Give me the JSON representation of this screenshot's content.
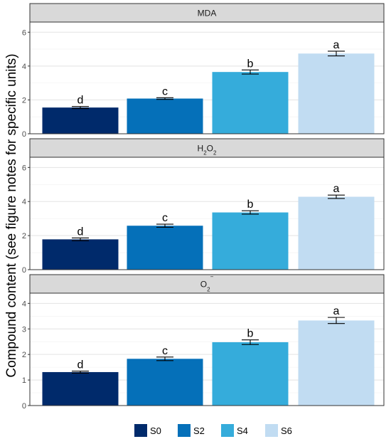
{
  "chart_data": {
    "type": "bar",
    "ylabel": "Compound content (see figure notes for specific units)",
    "categories": [
      "S0",
      "S2",
      "S4",
      "S6"
    ],
    "colors": [
      "#002a6b",
      "#0570b9",
      "#35acdb",
      "#c1dcf2"
    ],
    "legend": {
      "position": "bottom",
      "entries": [
        "S0",
        "S2",
        "S4",
        "S6"
      ]
    },
    "grid": true,
    "panels": [
      {
        "title_html": "MDA",
        "ylim": [
          0,
          6.6
        ],
        "yticks": [
          0,
          2,
          4,
          6
        ],
        "values": [
          1.55,
          2.08,
          3.65,
          4.74
        ],
        "errors": [
          0.06,
          0.05,
          0.12,
          0.14
        ],
        "letters": [
          "d",
          "c",
          "b",
          "a"
        ]
      },
      {
        "title_html": "H<tspan baseline-shift=\"sub\" font-size=\"8\">2</tspan>O<tspan baseline-shift=\"sub\" font-size=\"8\">2</tspan>",
        "ylim": [
          0,
          6.6
        ],
        "yticks": [
          0,
          2,
          4,
          6
        ],
        "values": [
          1.78,
          2.58,
          3.36,
          4.28
        ],
        "errors": [
          0.08,
          0.09,
          0.1,
          0.1
        ],
        "letters": [
          "d",
          "c",
          "b",
          "a"
        ]
      },
      {
        "title_html": "O<tspan baseline-shift=\"-6\" font-size=\"8\">2</tspan><tspan baseline-shift=\"12\" font-size=\"8\">−</tspan>",
        "ylim": [
          0,
          4.4
        ],
        "yticks": [
          0,
          1,
          2,
          3,
          4
        ],
        "values": [
          1.31,
          1.83,
          2.48,
          3.33
        ],
        "errors": [
          0.04,
          0.07,
          0.09,
          0.12
        ],
        "letters": [
          "d",
          "c",
          "b",
          "a"
        ]
      }
    ]
  }
}
